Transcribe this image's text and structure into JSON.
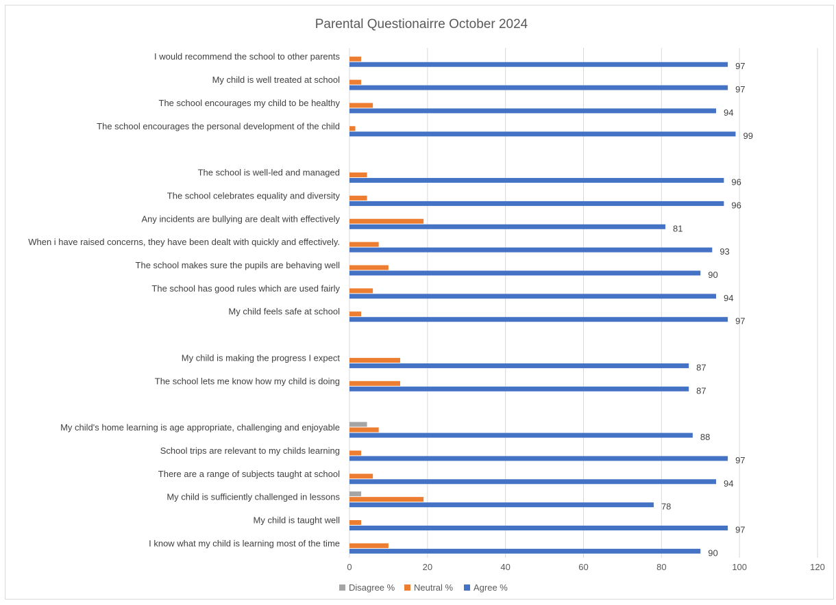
{
  "chart_data": {
    "type": "bar",
    "orientation": "horizontal",
    "title": "Parental Questionairre October 2024",
    "xlim": [
      0,
      120
    ],
    "x_ticks": [
      "0",
      "20",
      "40",
      "60",
      "80",
      "100",
      "120"
    ],
    "grid": "vertical",
    "legend_position": "bottom",
    "rows": [
      {
        "label": "I would recommend the school to other parents",
        "disagree": 0,
        "neutral": 3,
        "agree": 97,
        "agree_label": "97"
      },
      {
        "label": "My child is well treated at school",
        "disagree": 0,
        "neutral": 3,
        "agree": 97,
        "agree_label": "97"
      },
      {
        "label": "The school encourages my child to be healthy",
        "disagree": 0,
        "neutral": 6,
        "agree": 94,
        "agree_label": "94"
      },
      {
        "label": "The school encourages the personal development of the child",
        "disagree": 0,
        "neutral": 1.5,
        "agree": 99,
        "agree_label": "99"
      },
      {
        "label": "",
        "disagree": 0,
        "neutral": 0,
        "agree": 0,
        "agree_label": ""
      },
      {
        "label": "The school is well-led and managed",
        "disagree": 0,
        "neutral": 4.5,
        "agree": 96,
        "agree_label": "96"
      },
      {
        "label": "The school celebrates equality and diversity",
        "disagree": 0,
        "neutral": 4.5,
        "agree": 96,
        "agree_label": "96"
      },
      {
        "label": "Any incidents are bullying are dealt with effectively",
        "disagree": 0,
        "neutral": 19,
        "agree": 81,
        "agree_label": "81"
      },
      {
        "label": "When i have raised concerns, they have been dealt with quickly and effectively.",
        "disagree": 0,
        "neutral": 7.5,
        "agree": 93,
        "agree_label": "93"
      },
      {
        "label": "The school makes sure the pupils are behaving well",
        "disagree": 0,
        "neutral": 10,
        "agree": 90,
        "agree_label": "90"
      },
      {
        "label": "The school has good rules which are used fairly",
        "disagree": 0,
        "neutral": 6,
        "agree": 94,
        "agree_label": "94"
      },
      {
        "label": "My child feels safe at school",
        "disagree": 0,
        "neutral": 3,
        "agree": 97,
        "agree_label": "97"
      },
      {
        "label": "",
        "disagree": 0,
        "neutral": 0,
        "agree": 0,
        "agree_label": ""
      },
      {
        "label": "My child is making the progress I expect",
        "disagree": 0,
        "neutral": 13,
        "agree": 87,
        "agree_label": "87"
      },
      {
        "label": "The school lets me know how my child is doing",
        "disagree": 0,
        "neutral": 13,
        "agree": 87,
        "agree_label": "87"
      },
      {
        "label": "",
        "disagree": 0,
        "neutral": 0,
        "agree": 0,
        "agree_label": ""
      },
      {
        "label": "My child's home learning is age appropriate, challenging and enjoyable",
        "disagree": 4.5,
        "neutral": 7.5,
        "agree": 88,
        "agree_label": "88"
      },
      {
        "label": "School trips are relevant to my childs learning",
        "disagree": 0,
        "neutral": 3,
        "agree": 97,
        "agree_label": "97"
      },
      {
        "label": "There are a range of subjects taught at school",
        "disagree": 0,
        "neutral": 6,
        "agree": 94,
        "agree_label": "94"
      },
      {
        "label": "My child is sufficiently challenged in lessons",
        "disagree": 3,
        "neutral": 19,
        "agree": 78,
        "agree_label": "78"
      },
      {
        "label": "My child is taught well",
        "disagree": 0,
        "neutral": 3,
        "agree": 97,
        "agree_label": "97"
      },
      {
        "label": "I know what my child is learning most of the time",
        "disagree": 0,
        "neutral": 10,
        "agree": 90,
        "agree_label": "90"
      }
    ],
    "series": [
      {
        "key": "disagree",
        "name": "Disagree %",
        "color": "#A5A5A5"
      },
      {
        "key": "neutral",
        "name": "Neutral %",
        "color": "#ED7D31"
      },
      {
        "key": "agree",
        "name": "Agree %",
        "color": "#4472C4"
      }
    ],
    "gridline_color": "#D9D9D9",
    "text_color": "#404040"
  }
}
